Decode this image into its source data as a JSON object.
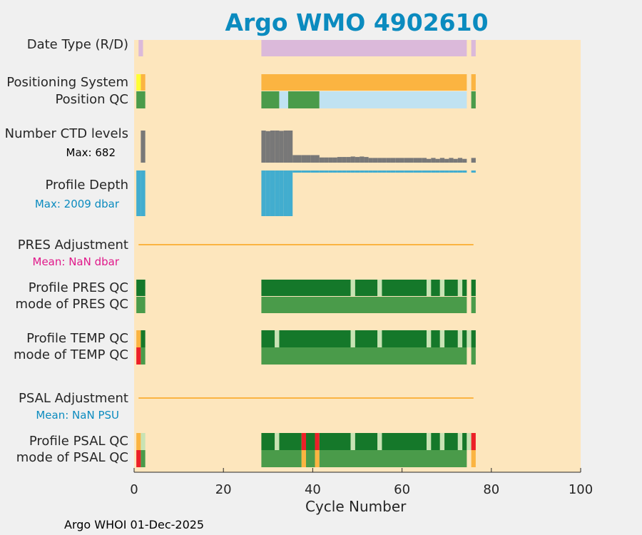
{
  "title": "Argo WMO 4902610",
  "footer": "Argo WHOI 01-Dec-2025",
  "colors": {
    "background": "#fde6bd",
    "figure_bg": "#f0f0f0",
    "title": "#0b8bbf",
    "data_type_D": "#dbb9da",
    "position_system": "#fbb441",
    "position_system_alt": "#ffff33",
    "qc_good": "#4a9b4a",
    "qc_good_dark": "#15782a",
    "qc_light_blue": "#c0e2f1",
    "qc_pale_green": "#c8e3b4",
    "qc_bad": "#ec2028",
    "qc_probably_bad": "#fbb441",
    "ctd_levels": "#787878",
    "profile_depth": "#42adcf",
    "adjustment_line": "#fbb441",
    "pres_mean": "#e0198a",
    "psal_mean": "#0b8bbf"
  },
  "rows": [
    {
      "id": "date_type",
      "label": "Date Type (R/D)"
    },
    {
      "id": "positioning_system",
      "label": "Positioning System"
    },
    {
      "id": "position_qc",
      "label": "Position QC"
    },
    {
      "id": "number_ctd_levels",
      "label": "Number CTD levels",
      "note": "Max: 682"
    },
    {
      "id": "profile_depth",
      "label": "Profile Depth",
      "note": "Max: 2009 dbar"
    },
    {
      "id": "pres_adjustment",
      "label": "PRES Adjustment",
      "note": "Mean:  NaN dbar"
    },
    {
      "id": "profile_pres_qc",
      "label": "Profile PRES QC"
    },
    {
      "id": "mode_pres_qc",
      "label": "mode of PRES QC"
    },
    {
      "id": "profile_temp_qc",
      "label": "Profile TEMP QC"
    },
    {
      "id": "mode_temp_qc",
      "label": "mode of TEMP QC"
    },
    {
      "id": "psal_adjustment",
      "label": "PSAL Adjustment",
      "note": "Mean:  NaN PSU"
    },
    {
      "id": "profile_psal_qc",
      "label": "Profile PSAL QC"
    },
    {
      "id": "mode_psal_qc",
      "label": "mode of PSAL QC"
    }
  ],
  "chart_data": {
    "type": "bar",
    "xlabel": "Cycle Number",
    "xlim": [
      0,
      100
    ],
    "xticks": [
      0,
      20,
      40,
      60,
      80,
      100
    ],
    "cycles_reported": [
      1,
      2,
      29,
      30,
      31,
      32,
      33,
      34,
      35,
      36,
      37,
      38,
      39,
      40,
      41,
      42,
      43,
      44,
      45,
      46,
      47,
      48,
      49,
      50,
      51,
      52,
      53,
      54,
      55,
      56,
      57,
      58,
      59,
      60,
      61,
      62,
      63,
      64,
      65,
      66,
      67,
      68,
      69,
      70,
      71,
      72,
      73,
      74,
      76
    ],
    "number_ctd_levels": {
      "max": 682,
      "values": {
        "2": 682,
        "29": 682,
        "30": 670,
        "31": 682,
        "32": 682,
        "33": 675,
        "34": 682,
        "35": 682,
        "36": 160,
        "37": 160,
        "38": 160,
        "39": 160,
        "40": 160,
        "41": 160,
        "42": 110,
        "43": 110,
        "44": 110,
        "45": 110,
        "46": 120,
        "47": 120,
        "48": 120,
        "49": 130,
        "50": 120,
        "51": 130,
        "52": 120,
        "53": 100,
        "54": 100,
        "55": 100,
        "56": 100,
        "57": 100,
        "58": 100,
        "59": 100,
        "60": 100,
        "61": 100,
        "62": 100,
        "63": 100,
        "64": 100,
        "65": 100,
        "66": 80,
        "67": 100,
        "68": 80,
        "69": 100,
        "70": 80,
        "71": 100,
        "72": 80,
        "73": 100,
        "74": 80,
        "76": 100
      }
    },
    "profile_depth": {
      "max": 2009,
      "values": {
        "1": 2009,
        "2": 2009,
        "29": 2009,
        "30": 2009,
        "31": 2009,
        "32": 2009,
        "33": 2009,
        "34": 2009,
        "35": 2009,
        "36": 70,
        "37": 70,
        "38": 70,
        "39": 70,
        "40": 70,
        "41": 70,
        "42": 40,
        "43": 40,
        "44": 40,
        "45": 40,
        "46": 70,
        "47": 70,
        "48": 70,
        "49": 40,
        "50": 70,
        "51": 70,
        "52": 70,
        "53": 40,
        "54": 40,
        "55": 40,
        "56": 40,
        "57": 40,
        "58": 40,
        "59": 40,
        "60": 40,
        "61": 40,
        "62": 70,
        "63": 70,
        "64": 70,
        "65": 70,
        "66": 40,
        "67": 70,
        "68": 70,
        "69": 40,
        "70": 70,
        "71": 70,
        "72": 40,
        "73": 70,
        "74": 40,
        "76": 40
      }
    },
    "pres_adjustment": {
      "mean": "NaN",
      "unit": "dbar",
      "x_range": [
        1,
        76
      ]
    },
    "psal_adjustment": {
      "mean": "NaN",
      "unit": "PSU",
      "x_range": [
        1,
        76
      ]
    },
    "segments": {
      "date_type": [
        [
          1,
          2,
          "data_type_D"
        ],
        [
          28.5,
          74.5,
          "data_type_D"
        ],
        [
          75.5,
          76.5,
          "data_type_D"
        ]
      ],
      "positioning_system": [
        [
          0.5,
          1.5,
          "position_system_alt"
        ],
        [
          1.5,
          2.5,
          "position_system"
        ],
        [
          28.5,
          74.5,
          "position_system"
        ],
        [
          75.5,
          76.5,
          "position_system"
        ]
      ],
      "position_qc": [
        [
          0.5,
          2.5,
          "qc_good"
        ],
        [
          28.5,
          32.5,
          "qc_good"
        ],
        [
          32.5,
          34.5,
          "qc_light_blue"
        ],
        [
          34.5,
          41.5,
          "qc_good"
        ],
        [
          41.5,
          74.5,
          "qc_light_blue"
        ],
        [
          75.5,
          76.5,
          "qc_good"
        ]
      ],
      "profile_pres_qc": [
        [
          0.5,
          2.5,
          "qc_good_dark"
        ],
        [
          28.5,
          48.5,
          "qc_good_dark"
        ],
        [
          48.5,
          49.5,
          "qc_pale_green"
        ],
        [
          49.5,
          54.5,
          "qc_good_dark"
        ],
        [
          54.5,
          55.5,
          "qc_pale_green"
        ],
        [
          55.5,
          65.5,
          "qc_good_dark"
        ],
        [
          65.5,
          66.5,
          "qc_pale_green"
        ],
        [
          66.5,
          68.5,
          "qc_good_dark"
        ],
        [
          68.5,
          69.5,
          "qc_pale_green"
        ],
        [
          69.5,
          72.5,
          "qc_good_dark"
        ],
        [
          72.5,
          73.5,
          "qc_pale_green"
        ],
        [
          73.5,
          74.5,
          "qc_good_dark"
        ],
        [
          75.5,
          76.5,
          "qc_good_dark"
        ]
      ],
      "mode_pres_qc": [
        [
          0.5,
          2.5,
          "qc_good"
        ],
        [
          28.5,
          74.5,
          "qc_good"
        ],
        [
          75.5,
          76.5,
          "qc_good"
        ]
      ],
      "profile_temp_qc": [
        [
          0.5,
          1.5,
          "qc_probably_bad"
        ],
        [
          1.5,
          2.5,
          "qc_good_dark"
        ],
        [
          28.5,
          31.5,
          "qc_good_dark"
        ],
        [
          31.5,
          32.5,
          "qc_pale_green"
        ],
        [
          32.5,
          48.5,
          "qc_good_dark"
        ],
        [
          48.5,
          49.5,
          "qc_pale_green"
        ],
        [
          49.5,
          54.5,
          "qc_good_dark"
        ],
        [
          54.5,
          55.5,
          "qc_pale_green"
        ],
        [
          55.5,
          65.5,
          "qc_good_dark"
        ],
        [
          65.5,
          66.5,
          "qc_pale_green"
        ],
        [
          66.5,
          68.5,
          "qc_good_dark"
        ],
        [
          68.5,
          69.5,
          "qc_pale_green"
        ],
        [
          69.5,
          72.5,
          "qc_good_dark"
        ],
        [
          72.5,
          73.5,
          "qc_pale_green"
        ],
        [
          73.5,
          74.5,
          "qc_good_dark"
        ],
        [
          74.5,
          75.5,
          "qc_pale_green"
        ],
        [
          75.5,
          76.5,
          "qc_good_dark"
        ]
      ],
      "mode_temp_qc": [
        [
          0.5,
          1.5,
          "qc_bad"
        ],
        [
          1.5,
          2.5,
          "qc_good"
        ],
        [
          28.5,
          74.5,
          "qc_good"
        ],
        [
          75.5,
          76.5,
          "qc_good"
        ]
      ],
      "profile_psal_qc": [
        [
          0.5,
          1.5,
          "qc_probably_bad"
        ],
        [
          1.5,
          2.5,
          "qc_pale_green"
        ],
        [
          28.5,
          31.5,
          "qc_good_dark"
        ],
        [
          31.5,
          32.5,
          "qc_pale_green"
        ],
        [
          32.5,
          37.5,
          "qc_good_dark"
        ],
        [
          37.5,
          38.5,
          "qc_bad"
        ],
        [
          38.5,
          40.5,
          "qc_good_dark"
        ],
        [
          40.5,
          41.5,
          "qc_bad"
        ],
        [
          41.5,
          48.5,
          "qc_good_dark"
        ],
        [
          48.5,
          49.5,
          "qc_pale_green"
        ],
        [
          49.5,
          54.5,
          "qc_good_dark"
        ],
        [
          54.5,
          55.5,
          "qc_pale_green"
        ],
        [
          55.5,
          65.5,
          "qc_good_dark"
        ],
        [
          65.5,
          66.5,
          "qc_pale_green"
        ],
        [
          66.5,
          68.5,
          "qc_good_dark"
        ],
        [
          68.5,
          69.5,
          "qc_pale_green"
        ],
        [
          69.5,
          72.5,
          "qc_good_dark"
        ],
        [
          72.5,
          73.5,
          "qc_pale_green"
        ],
        [
          73.5,
          74.5,
          "qc_good_dark"
        ],
        [
          74.5,
          75.5,
          "qc_pale_green"
        ],
        [
          75.5,
          76.5,
          "qc_bad"
        ]
      ],
      "mode_psal_qc": [
        [
          0.5,
          1.5,
          "qc_bad"
        ],
        [
          1.5,
          2.5,
          "qc_good"
        ],
        [
          28.5,
          37.5,
          "qc_good"
        ],
        [
          37.5,
          38.5,
          "qc_probably_bad"
        ],
        [
          38.5,
          40.5,
          "qc_good"
        ],
        [
          40.5,
          41.5,
          "qc_probably_bad"
        ],
        [
          41.5,
          74.5,
          "qc_good"
        ],
        [
          75.5,
          76.5,
          "qc_probably_bad"
        ]
      ]
    }
  }
}
